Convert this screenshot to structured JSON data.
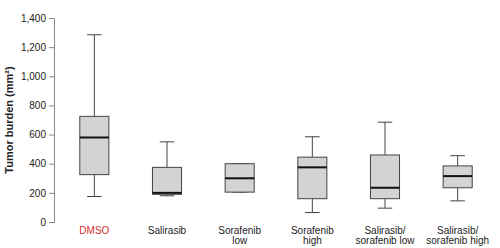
{
  "chart_data": {
    "type": "box",
    "y_label": "Tumor burden (mm²)",
    "categories": [
      "DMSO",
      "Salirasib",
      "Sorafenib\nlow",
      "Sorafenib\nhigh",
      "Salirasib/\nsorafenib low",
      "Salirasib/\nsorafenib high"
    ],
    "values": [
      {
        "min": 175,
        "q1": 325,
        "median": 580,
        "q3": 725,
        "max": 1285
      },
      {
        "min": 180,
        "q1": 190,
        "median": 200,
        "q3": 375,
        "max": 550
      },
      {
        "min": 205,
        "q1": 205,
        "median": 300,
        "q3": 400,
        "max": 400
      },
      {
        "min": 65,
        "q1": 160,
        "median": 375,
        "q3": 445,
        "max": 585
      },
      {
        "min": 95,
        "q1": 160,
        "median": 235,
        "q3": 460,
        "max": 685
      },
      {
        "min": 145,
        "q1": 235,
        "median": 315,
        "q3": 385,
        "max": 455
      }
    ],
    "color": "#d3d3d3",
    "ylim": [
      0,
      1400
    ],
    "yticks": [
      0,
      200,
      400,
      600,
      800,
      {
        "value": 1000,
        "label": "1,000"
      },
      {
        "value": 1200,
        "label": "1,200"
      },
      {
        "value": 1400,
        "label": "1,400"
      }
    ],
    "grid": false
  }
}
